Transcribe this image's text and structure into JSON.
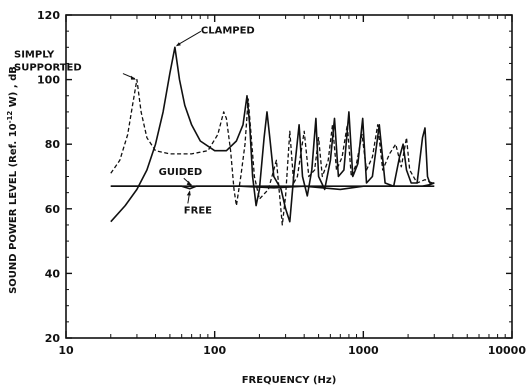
{
  "chart_data": {
    "type": "line",
    "title": "",
    "xlabel": "FREQUENCY (Hz)",
    "ylabel_parts": [
      "SOUND POWER LEVEL (Ref. 10",
      "-12",
      " W) , dB"
    ],
    "x_scale": "log",
    "xlim": [
      10,
      10000
    ],
    "ylim": [
      20,
      120
    ],
    "x_ticks": [
      10,
      100,
      1000,
      10000
    ],
    "x_tick_labels": [
      "10",
      "100",
      "1000",
      "10000"
    ],
    "y_ticks": [
      20,
      40,
      60,
      80,
      100,
      120
    ],
    "y_tick_labels": [
      "20",
      "40",
      "60",
      "80",
      "100",
      "120"
    ],
    "grid": false,
    "series": [
      {
        "name": "SIMPLY SUPPORTED",
        "style": "dashed",
        "points": [
          [
            20,
            71
          ],
          [
            23,
            75
          ],
          [
            26,
            83
          ],
          [
            28,
            92
          ],
          [
            30,
            100
          ],
          [
            32,
            90
          ],
          [
            35,
            82
          ],
          [
            40,
            78
          ],
          [
            50,
            77
          ],
          [
            70,
            77
          ],
          [
            90,
            78
          ],
          [
            105,
            83
          ],
          [
            115,
            90
          ],
          [
            120,
            88
          ],
          [
            128,
            78
          ],
          [
            135,
            66
          ],
          [
            140,
            61
          ],
          [
            150,
            70
          ],
          [
            160,
            80
          ],
          [
            168,
            94
          ],
          [
            175,
            84
          ],
          [
            185,
            70
          ],
          [
            200,
            63
          ],
          [
            230,
            66
          ],
          [
            260,
            75
          ],
          [
            285,
            55
          ],
          [
            300,
            64
          ],
          [
            320,
            84
          ],
          [
            340,
            68
          ],
          [
            360,
            70
          ],
          [
            400,
            84
          ],
          [
            430,
            70
          ],
          [
            470,
            72
          ],
          [
            500,
            82
          ],
          [
            530,
            70
          ],
          [
            580,
            75
          ],
          [
            620,
            86
          ],
          [
            660,
            72
          ],
          [
            720,
            76
          ],
          [
            780,
            86
          ],
          [
            830,
            70
          ],
          [
            900,
            74
          ],
          [
            980,
            83
          ],
          [
            1050,
            72
          ],
          [
            1150,
            76
          ],
          [
            1250,
            86
          ],
          [
            1350,
            72
          ],
          [
            1500,
            77
          ],
          [
            1650,
            80
          ],
          [
            1800,
            73
          ],
          [
            1950,
            82
          ],
          [
            2050,
            72
          ],
          [
            2300,
            68
          ],
          [
            2600,
            69
          ],
          [
            2900,
            68
          ],
          [
            3000,
            68
          ]
        ]
      },
      {
        "name": "CLAMPED",
        "style": "solid",
        "points": [
          [
            20,
            56
          ],
          [
            25,
            61
          ],
          [
            30,
            66
          ],
          [
            35,
            72
          ],
          [
            40,
            80
          ],
          [
            45,
            90
          ],
          [
            50,
            102
          ],
          [
            54,
            110
          ],
          [
            58,
            100
          ],
          [
            63,
            92
          ],
          [
            70,
            86
          ],
          [
            80,
            81
          ],
          [
            100,
            78
          ],
          [
            120,
            78
          ],
          [
            140,
            81
          ],
          [
            155,
            86
          ],
          [
            165,
            95
          ],
          [
            172,
            86
          ],
          [
            180,
            70
          ],
          [
            190,
            61
          ],
          [
            200,
            66
          ],
          [
            215,
            82
          ],
          [
            225,
            90
          ],
          [
            235,
            82
          ],
          [
            250,
            70
          ],
          [
            280,
            66
          ],
          [
            300,
            60
          ],
          [
            320,
            56
          ],
          [
            340,
            70
          ],
          [
            370,
            86
          ],
          [
            390,
            70
          ],
          [
            420,
            64
          ],
          [
            450,
            72
          ],
          [
            480,
            88
          ],
          [
            500,
            70
          ],
          [
            550,
            66
          ],
          [
            600,
            75
          ],
          [
            640,
            88
          ],
          [
            680,
            70
          ],
          [
            740,
            72
          ],
          [
            800,
            90
          ],
          [
            850,
            70
          ],
          [
            920,
            74
          ],
          [
            990,
            88
          ],
          [
            1050,
            68
          ],
          [
            1150,
            70
          ],
          [
            1280,
            86
          ],
          [
            1400,
            68
          ],
          [
            1600,
            67
          ],
          [
            1750,
            76
          ],
          [
            1850,
            80
          ],
          [
            1950,
            72
          ],
          [
            2100,
            68
          ],
          [
            2300,
            68
          ],
          [
            2500,
            82
          ],
          [
            2600,
            85
          ],
          [
            2700,
            70
          ],
          [
            2800,
            68
          ],
          [
            3000,
            68
          ]
        ]
      },
      {
        "name": "GUIDED",
        "style": "solid",
        "points": [
          [
            20,
            67
          ],
          [
            100,
            67
          ],
          [
            200,
            67
          ],
          [
            300,
            67
          ],
          [
            500,
            67
          ],
          [
            1000,
            67
          ],
          [
            2000,
            67
          ],
          [
            2500,
            67
          ],
          [
            2800,
            67.5
          ],
          [
            3000,
            68
          ]
        ]
      },
      {
        "name": "FREE",
        "style": "solid",
        "points": [
          [
            20,
            67
          ],
          [
            60,
            67
          ],
          [
            68,
            66.2
          ],
          [
            75,
            67
          ],
          [
            150,
            67
          ],
          [
            250,
            66.5
          ],
          [
            400,
            67
          ],
          [
            700,
            66
          ],
          [
            1000,
            67
          ],
          [
            2000,
            67
          ],
          [
            3000,
            67
          ]
        ]
      }
    ],
    "annotations": [
      {
        "text": "CLAMPED",
        "x": 54,
        "y": 110
      },
      {
        "text": "SIMPLY",
        "x": 30,
        "y": 100
      },
      {
        "text": "SUPPORTED",
        "x": 30,
        "y": 100
      },
      {
        "text": "GUIDED",
        "x": 70,
        "y": 67
      },
      {
        "text": "FREE",
        "x": 68,
        "y": 66
      }
    ]
  }
}
